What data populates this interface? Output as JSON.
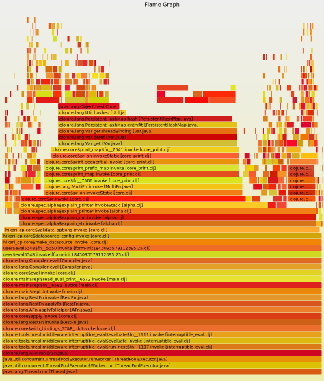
{
  "title": "Flame Graph",
  "frames": [
    {
      "label": "java.lang.Thread.run [Thread.java]"
    },
    {
      "label": "java.util.concurrent.ThreadPoolExecutor$Worker.run [ThreadPoolExecutor.java]"
    },
    {
      "label": "java.util.concurrent.ThreadPoolExecutor.runWorker [ThreadPoolExecutor.java]"
    },
    {
      "label": "clojure.lang.AFn.run [AFn.java]"
    },
    {
      "label": "clojure.tools.nrepl.middleware.interruptible_eval$run_next$fn__1117 invoke [interruptible_eval.clj]"
    },
    {
      "label": "clojure.tools.nrepl.middleware.interruptible_eval$evaluate invoke [interruptible_eval.clj]"
    },
    {
      "label": "clojure.tools.nrepl.middleware.interruptible_eval$evaluate$fn__1111 invoke [interruptible_eval.clj]"
    },
    {
      "label": "clojure.core$with_bindings_STAR_ doInvoke [core.clj]"
    },
    {
      "label": "clojure.lang.RestFn invoke [RestFn.java]"
    },
    {
      "label": "clojure.core$apply invoke [core.clj]"
    },
    {
      "label": "clojure.lang.AFn applyToHelper [AFn.java]"
    },
    {
      "label": "clojure.lang.RestFn applyTo [RestFn.java]"
    },
    {
      "label": "clojure.lang.RestFn invoke [RestFn.java]"
    },
    {
      "label": "clojure.main$repl doInvoke [main.clj]"
    },
    {
      "label": "clojure.main$repl$fn__6581 invoke [main.clj]"
    },
    {
      "label": "clojure.main$repl$read_eval_print__6572 invoke [main.clj]"
    },
    {
      "label": "clojure.core$eval invoke [core.clj]"
    },
    {
      "label": "clojure.lang.Compiler eval [Compiler.java]"
    },
    {
      "label": "clojure.lang.Compiler eval [Compiler.java]"
    },
    {
      "label": "user$eval5348 invoke [form-init1843093579112395 25.clj]"
    },
    {
      "label": "user$eval5348$fn__5350 invoke [form-init1843093579112395 25.clj]"
    },
    {
      "label": "hikari_cp.core$make_datasource invoke [core.clj]"
    },
    {
      "label": "hikari_cp.core$datasource_config invoke [core.clj]"
    },
    {
      "label": "hikari_cp.core$validate_options invoke [core.clj]"
    },
    {
      "label": "clojure.spec.alpha$explain_str invoke [alpha.clj]"
    },
    {
      "label": "clojure.spec.alpha$explain_out invoke [alpha.clj]"
    },
    {
      "label": "clojure.spec.alpha$explain_printer invoke [alpha.clj]"
    },
    {
      "label": "clojure.spec.alpha$explain_printer invokeStatic [alpha.clj]"
    },
    {
      "label": "clojure.core$pr invoke [core.clj]"
    },
    {
      "label": "clojure.core$pr_on invokeStatic [core.clj]"
    },
    {
      "label": "clojure.lang.MultiFn invoke [MultiFn.java]"
    },
    {
      "label": "clojure.core$fn__7566 invoke [core_print.clj]"
    },
    {
      "label": "clojure.core$print_map invoke [core_print.clj]"
    },
    {
      "label": "clojure.core$print_prefix_map invoke [core_print.clj]"
    },
    {
      "label": "clojure.core$print_sequential invoke [core_print.clj]"
    },
    {
      "label": "clojure.core$pr_on invokeStatic [core_print.clj]"
    },
    {
      "label": "clojure.core$print_map$fn__7541 invoke [core_print.clj]"
    },
    {
      "label": "clojure.lang.Var get [Var.java]"
    },
    {
      "label": "clojure.lang.Var deref [Var.java]"
    },
    {
      "label": "clojure.lang.Var getThreadBinding [Var.java]"
    },
    {
      "label": "clojure.lang.PersistentHashMap entryAt [PersistentHashMap.java]"
    },
    {
      "label": "clojure.lang.PersistentHashMap hash [PersistentHashMap.java]"
    },
    {
      "label": "clojure.lang.Util hasheq [Util.java]"
    },
    {
      "label": "java.lang.Object hashCode [Object.java]"
    },
    {
      "label": "clojure.c..."
    },
    {
      "label": "clojure.c..."
    },
    {
      "label": "clojure.c..."
    },
    {
      "label": "clojure.c..."
    },
    {
      "label": "clojure.c..."
    },
    {
      "label": "clojure.c..."
    }
  ]
}
